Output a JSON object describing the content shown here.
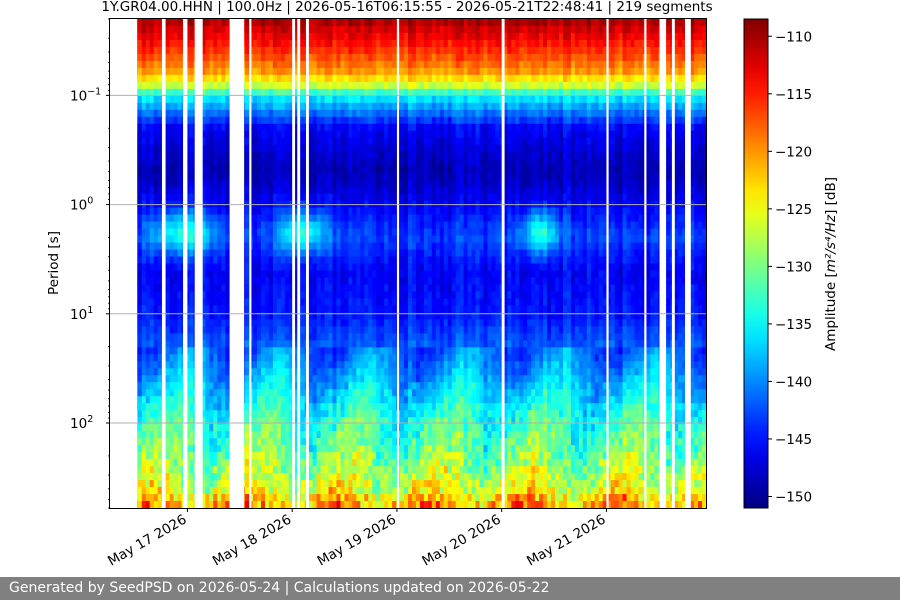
{
  "title": "1Y.GR04.00.HHN | 100.0Hz | 2026-05-16T06:15:55 - 2026-05-21T22:48:41 | 219 segments",
  "footer": "Generated by SeedPSD on 2026-05-24 | Calculations updated on 2026-05-22",
  "chart_data": {
    "type": "heatmap",
    "title": "1Y.GR04.00.HHN | 100.0Hz | 2026-05-16T06:15:55 - 2026-05-21T22:48:41 | 219 segments",
    "xlabel": "",
    "ylabel": "Period [s]",
    "x_range": [
      "2026-05-16T06:15:55",
      "2026-05-21T22:48:41"
    ],
    "x_ticks": [
      {
        "value": "2026-05-17",
        "label": "May 17 2026"
      },
      {
        "value": "2026-05-18",
        "label": "May 18 2026"
      },
      {
        "value": "2026-05-19",
        "label": "May 19 2026"
      },
      {
        "value": "2026-05-20",
        "label": "May 20 2026"
      },
      {
        "value": "2026-05-21",
        "label": "May 21 2026"
      }
    ],
    "y_scale": "log",
    "y_inverted": true,
    "y_range_seconds": [
      0.02,
      600
    ],
    "y_ticks": [
      {
        "value": 0.1,
        "base": "10",
        "exp": "−1"
      },
      {
        "value": 1,
        "base": "10",
        "exp": "0"
      },
      {
        "value": 10,
        "base": "10",
        "exp": "1"
      },
      {
        "value": 100,
        "base": "10",
        "exp": "2"
      }
    ],
    "grid": "horizontal at major period ticks",
    "colormap": "jet",
    "colorbar": {
      "label_prefix": "Amplitude [",
      "label_math": "m²/s⁴/Hz",
      "label_suffix": "] [dB]",
      "range": [
        -151,
        -108.5
      ],
      "ticks": [
        -110,
        -115,
        -120,
        -125,
        -130,
        -135,
        -140,
        -145,
        -150
      ],
      "tick_labels": [
        "−110",
        "−115",
        "−120",
        "−125",
        "−130",
        "−135",
        "−140",
        "−145",
        "−150"
      ]
    },
    "data_gaps_days": [
      [
        "2026-05-16T06:15",
        "2026-05-16T12:30"
      ],
      [
        "2026-05-16T18:10",
        "2026-05-16T19:00"
      ],
      [
        "2026-05-16T23:00",
        "2026-05-17T00:00"
      ],
      [
        "2026-05-17T01:40",
        "2026-05-17T03:30"
      ],
      [
        "2026-05-17T09:40",
        "2026-05-17T13:00"
      ],
      [
        "2026-05-17T14:10",
        "2026-05-17T14:40"
      ],
      [
        "2026-05-18T00:00",
        "2026-05-18T00:40"
      ],
      [
        "2026-05-18T01:10",
        "2026-05-18T01:50"
      ],
      [
        "2026-05-18T03:10",
        "2026-05-18T03:50"
      ],
      [
        "2026-05-19T00:00",
        "2026-05-19T00:30"
      ],
      [
        "2026-05-20T00:00",
        "2026-05-20T00:40"
      ],
      [
        "2026-05-21T00:00",
        "2026-05-21T00:30"
      ],
      [
        "2026-05-21T08:40",
        "2026-05-21T09:10"
      ],
      [
        "2026-05-21T12:10",
        "2026-05-21T13:40"
      ],
      [
        "2026-05-21T15:00",
        "2026-05-21T15:40"
      ],
      [
        "2026-05-21T18:00",
        "2026-05-21T19:20"
      ]
    ],
    "psd_profile_db": {
      "period_s": [
        0.02,
        0.04,
        0.06,
        0.08,
        0.1,
        0.2,
        0.5,
        1,
        2,
        4,
        10,
        30,
        100,
        200,
        400,
        600
      ],
      "typical_db": [
        -110,
        -116,
        -120,
        -126,
        -135,
        -146,
        -149,
        -146,
        -143,
        -146,
        -145,
        -140,
        -133,
        -130,
        -126,
        -120
      ]
    }
  }
}
